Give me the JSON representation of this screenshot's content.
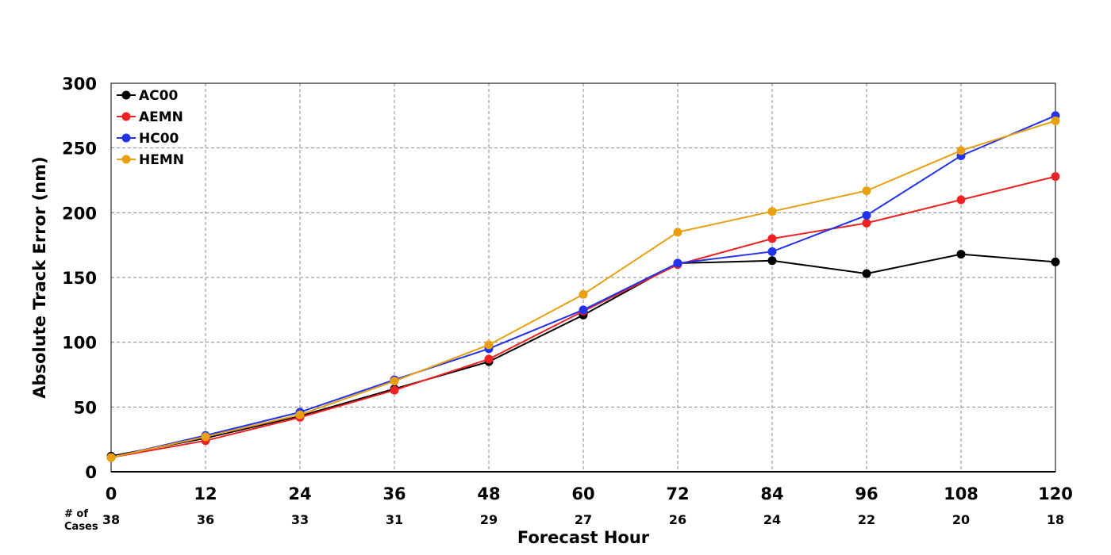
{
  "chart_data": {
    "type": "line",
    "xlabel": "Forecast Hour",
    "ylabel": "Absolute Track Error (nm)",
    "x": [
      0,
      12,
      24,
      36,
      48,
      60,
      72,
      84,
      96,
      108,
      120
    ],
    "xlim": [
      0,
      120
    ],
    "ylim": [
      0,
      300
    ],
    "yticks": [
      0,
      50,
      100,
      150,
      200,
      250,
      300
    ],
    "grid": true,
    "legend_position": "top-left",
    "cases_label_line1": "# of",
    "cases_label_line2": "Cases",
    "cases": [
      38,
      36,
      33,
      31,
      29,
      27,
      26,
      24,
      22,
      20,
      18
    ],
    "series": [
      {
        "name": "AC00",
        "color": "#000000",
        "values": [
          12,
          26,
          43,
          64,
          85,
          121,
          161,
          163,
          153,
          168,
          162
        ]
      },
      {
        "name": "AEMN",
        "color": "#ee2222",
        "values": [
          11,
          24,
          42,
          63,
          87,
          124,
          160,
          180,
          192,
          210,
          228
        ]
      },
      {
        "name": "HC00",
        "color": "#2233ee",
        "values": [
          11,
          28,
          46,
          71,
          95,
          125,
          161,
          170,
          198,
          244,
          275
        ]
      },
      {
        "name": "HEMN",
        "color": "#e8a010",
        "values": [
          11,
          27,
          44,
          70,
          98,
          137,
          185,
          201,
          217,
          248,
          271
        ]
      }
    ]
  }
}
